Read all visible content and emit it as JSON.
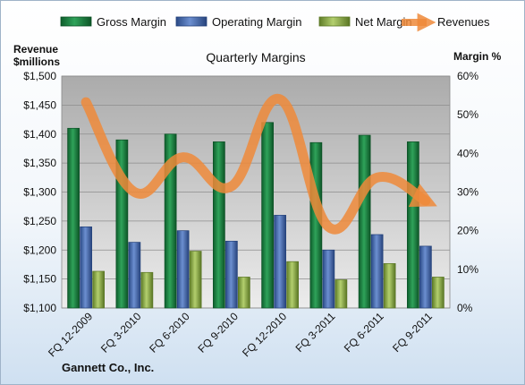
{
  "footer_text": "Gannett Co., Inc.",
  "chart_data": {
    "type": "bar",
    "title": "Quarterly Margins",
    "left_axis_title": [
      "Revenue",
      "$millions"
    ],
    "right_axis_title": "Margin %",
    "categories": [
      "FQ 12-2009",
      "FQ 3-2010",
      "FQ 6-2010",
      "FQ 9-2010",
      "FQ 12-2010",
      "FQ 3-2011",
      "FQ 6-2011",
      "FQ 9-2011"
    ],
    "left_ylim": [
      1100,
      1500
    ],
    "left_ticks": [
      "$1,100",
      "$1,150",
      "$1,200",
      "$1,250",
      "$1,300",
      "$1,350",
      "$1,400",
      "$1,450",
      "$1,500"
    ],
    "right_ylim": [
      0,
      60
    ],
    "right_ticks": [
      "0%",
      "10%",
      "20%",
      "30%",
      "40%",
      "50%",
      "60%"
    ],
    "series": [
      {
        "name": "Gross Margin",
        "kind": "bar",
        "axis": "right",
        "color": "#1e8a45",
        "values": [
          46.5,
          43.5,
          45.0,
          43.0,
          48.0,
          42.8,
          44.7,
          43.0
        ]
      },
      {
        "name": "Operating Margin",
        "kind": "bar",
        "axis": "right",
        "color": "#4a6fb5",
        "values": [
          21.0,
          17.0,
          20.0,
          17.3,
          24.0,
          15.0,
          19.0,
          16.0
        ]
      },
      {
        "name": "Net Margin",
        "kind": "bar",
        "axis": "right",
        "color": "#8fb04a",
        "values": [
          9.5,
          9.2,
          14.7,
          8.0,
          12.0,
          7.3,
          11.5,
          8.0
        ]
      },
      {
        "name": "Revenues",
        "kind": "line",
        "axis": "left",
        "color": "#ef8a3a",
        "values": [
          1455,
          1300,
          1360,
          1310,
          1460,
          1240,
          1325,
          1285
        ]
      }
    ],
    "legend_placement": "top",
    "grid": true,
    "bar_colors": {
      "gross": "#1e8a45",
      "operating": "#4a6fb5",
      "net": "#8fb04a",
      "revenue": "#ef8a3a"
    }
  }
}
